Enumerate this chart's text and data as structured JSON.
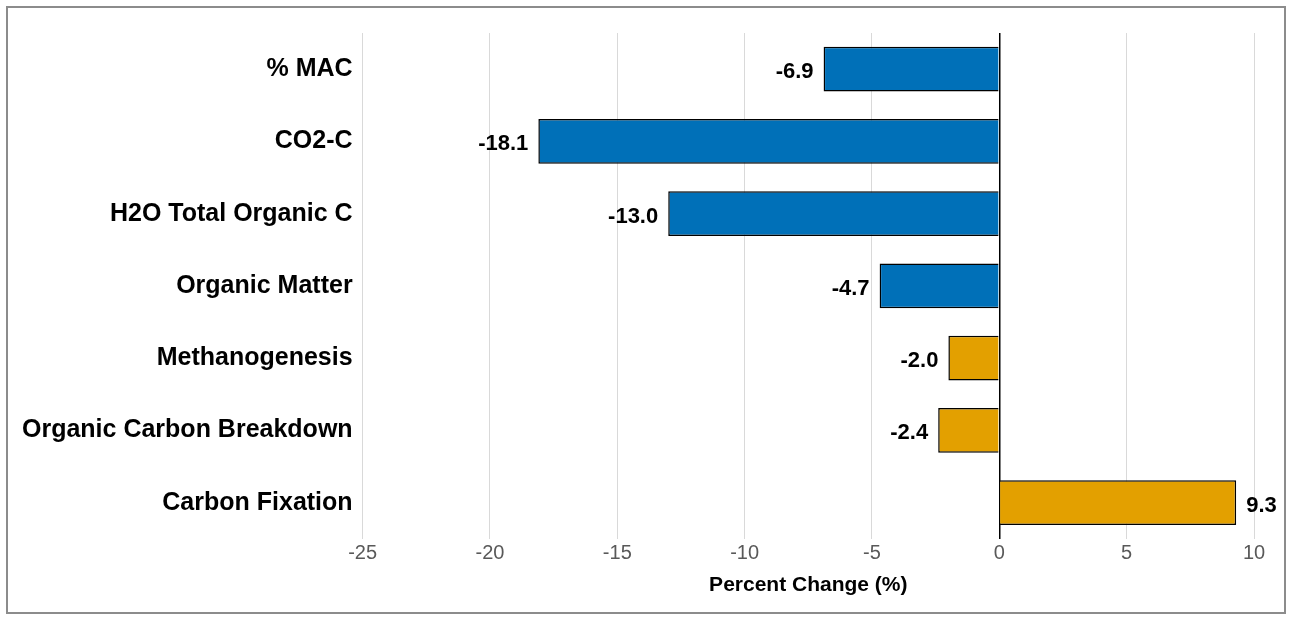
{
  "chart_data": {
    "type": "bar",
    "orientation": "horizontal",
    "xlabel": "Percent Change (%)",
    "categories": [
      "% MAC",
      "CO2-C",
      "H2O Total Organic C",
      "Organic Matter",
      "Methanogenesis",
      "Organic Carbon Breakdown",
      "Carbon Fixation"
    ],
    "values": [
      -6.9,
      -18.1,
      -13.0,
      -4.7,
      -2.0,
      -2.4,
      9.3
    ],
    "value_labels": [
      "-6.9",
      "-18.1",
      "-13.0",
      "-4.7",
      "-2.0",
      "-2.4",
      "9.3"
    ],
    "colors": [
      "#0070b8",
      "#0070b8",
      "#0070b8",
      "#0070b8",
      "#e3a000",
      "#e3a000",
      "#e3a000"
    ],
    "xlim": [
      -25,
      10
    ],
    "xticks": [
      -25,
      -20,
      -15,
      -10,
      -5,
      0,
      5,
      10
    ],
    "grid": "x",
    "legend": false
  }
}
